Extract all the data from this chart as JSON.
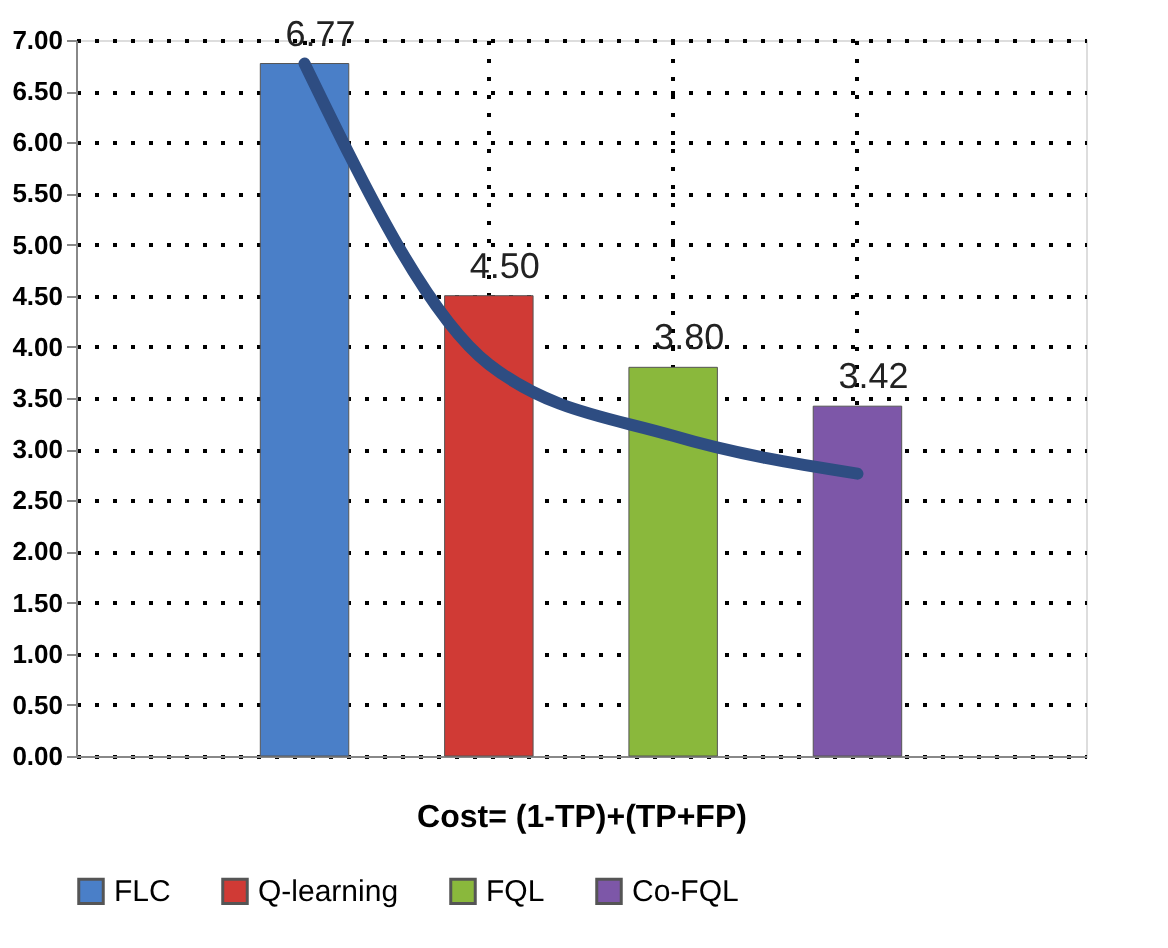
{
  "chart_data": {
    "type": "bar",
    "xlabel": "Cost= (1-TP)+(TP+FP)",
    "categories": [
      null,
      null,
      null,
      null
    ],
    "tick_labels": "y",
    "grid": true,
    "legend": "bottom",
    "ylim": [
      0,
      7
    ],
    "yticks": [
      {
        "value": 0,
        "label": "0.00"
      },
      {
        "value": 0.5,
        "label": "0.50"
      },
      {
        "value": 1,
        "label": "1.00"
      },
      {
        "value": 1.5,
        "label": "1.50"
      },
      {
        "value": 2,
        "label": "2.00"
      },
      {
        "value": 2.5,
        "label": "2.50"
      },
      {
        "value": 3,
        "label": "3.00"
      },
      {
        "value": 3.5,
        "label": "3.50"
      },
      {
        "value": 4,
        "label": "4.00"
      },
      {
        "value": 4.5,
        "label": "4.50"
      },
      {
        "value": 5,
        "label": "5.00"
      },
      {
        "value": 5.5,
        "label": "5.50"
      },
      {
        "value": 6,
        "label": "6.00"
      },
      {
        "value": 6.5,
        "label": "6.50"
      },
      {
        "value": 7,
        "label": "7.00"
      }
    ],
    "series": [
      {
        "name": "FLC",
        "color": "#4a7fc8",
        "values": [
          6.77,
          null,
          null,
          null
        ],
        "value_labels": [
          "6.77",
          null,
          null,
          null
        ]
      },
      {
        "name": "Q-learning",
        "color": "#d03a35",
        "values": [
          null,
          4.5,
          null,
          null
        ],
        "value_labels": [
          null,
          "4.50",
          null,
          null
        ]
      },
      {
        "name": "FQL",
        "color": "#8ab83c",
        "values": [
          null,
          null,
          3.8,
          null
        ],
        "value_labels": [
          null,
          null,
          "3.80",
          null
        ]
      },
      {
        "name": "Co-FQL",
        "color": "#7d57a8",
        "values": [
          null,
          null,
          null,
          3.42
        ],
        "value_labels": [
          null,
          null,
          null,
          "3.42"
        ]
      },
      {
        "type": "line",
        "color": "#2e4d82",
        "values": [
          6.77,
          3.83,
          3.13,
          2.76
        ]
      }
    ]
  }
}
